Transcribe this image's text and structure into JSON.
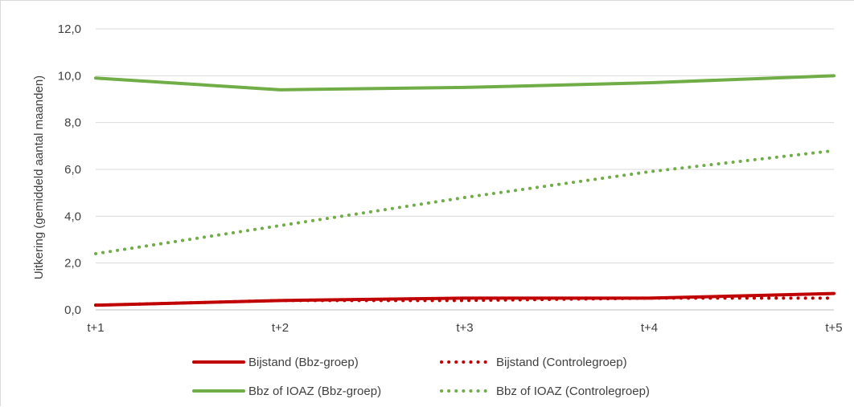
{
  "chart_data": {
    "type": "line",
    "title": "",
    "xlabel": "",
    "ylabel": "Uitkering (gemiddeld aantal maanden)",
    "categories": [
      "t+1",
      "t+2",
      "t+3",
      "t+4",
      "t+5"
    ],
    "ylim": [
      0,
      12
    ],
    "yticks": [
      "0,0",
      "2,0",
      "4,0",
      "6,0",
      "8,0",
      "10,0",
      "12,0"
    ],
    "yticks_values": [
      0,
      2,
      4,
      6,
      8,
      10,
      12
    ],
    "grid": "horizontal",
    "legend_position": "bottom",
    "series": [
      {
        "name": "Bijstand (Bbz-groep)",
        "values": [
          0.2,
          0.4,
          0.5,
          0.5,
          0.7
        ],
        "color": "#c00000",
        "style": "solid"
      },
      {
        "name": "Bijstand (Controlegroep)",
        "values": [
          0.2,
          0.4,
          0.4,
          0.5,
          0.5
        ],
        "color": "#c00000",
        "style": "dotted"
      },
      {
        "name": "Bbz of IOAZ (Bbz-groep)",
        "values": [
          9.9,
          9.4,
          9.5,
          9.7,
          10.0
        ],
        "color": "#70ad47",
        "style": "solid"
      },
      {
        "name": "Bbz of IOAZ (Controlegroep)",
        "values": [
          2.4,
          3.6,
          4.8,
          5.9,
          6.8
        ],
        "color": "#70ad47",
        "style": "dotted"
      }
    ]
  }
}
